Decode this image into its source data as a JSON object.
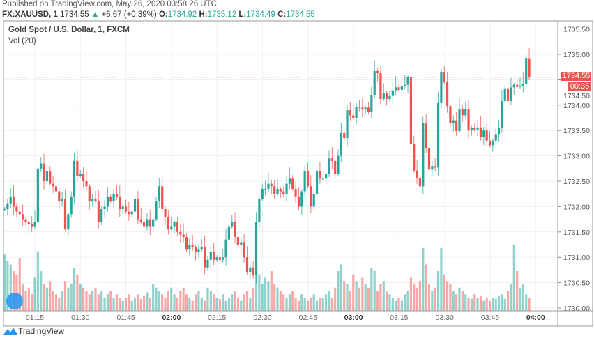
{
  "header": {
    "published": "Published on TradingView.com, May 26, 2020 03:58:26 UTC",
    "symbol": "FX:XAUUSD, 1",
    "last": "1734.55",
    "change": "+6.67 (+0.39%)",
    "o_label": "O:",
    "o": "1734.92",
    "h_label": "H:",
    "h": "1735.12",
    "l_label": "L:",
    "l": "1734.49",
    "c_label": "C:",
    "c": "1734.55"
  },
  "legend": {
    "title": "Gold Spot / U.S. Dollar, 1, FXCM",
    "volume": "Vol (20)"
  },
  "price_tag": {
    "price": "1734.55",
    "countdown": "00:35"
  },
  "footer": {
    "brand": "TradingView"
  },
  "colors": {
    "up": "#26a69a",
    "down": "#ef5350",
    "grid": "#eef1f4"
  },
  "chart_data": {
    "type": "candlestick",
    "interval_minutes": 1,
    "start_time": "01:05",
    "x_tick_labels": [
      "01:15",
      "01:30",
      "01:45",
      "02:00",
      "02:15",
      "02:30",
      "02:45",
      "03:00",
      "03:15",
      "03:30",
      "03:45",
      "04:00"
    ],
    "x_tick_bold": [
      "02:00",
      "03:00",
      "04:00"
    ],
    "y_tick_labels": [
      "1735.50",
      "1735.00",
      "1734.50",
      "1734.00",
      "1733.50",
      "1733.00",
      "1732.50",
      "1732.00",
      "1731.50",
      "1731.00",
      "1730.50",
      "1730.00"
    ],
    "ylim": [
      1730.0,
      1735.6
    ],
    "grid": true,
    "last_open": 1734.92,
    "last_high": 1735.12,
    "last_low": 1734.49,
    "closes": [
      1731.95,
      1732.05,
      1732.2,
      1732.0,
      1731.9,
      1731.85,
      1731.75,
      1731.7,
      1731.65,
      1731.6,
      1731.7,
      1732.75,
      1732.85,
      1732.5,
      1732.7,
      1732.45,
      1732.4,
      1732.3,
      1732.1,
      1732.15,
      1731.55,
      1731.85,
      1732.2,
      1732.9,
      1732.6,
      1732.65,
      1732.5,
      1732.4,
      1732.1,
      1732.15,
      1732.1,
      1731.7,
      1731.95,
      1732.0,
      1732.2,
      1732.1,
      1732.25,
      1732.2,
      1731.95,
      1732.0,
      1731.9,
      1731.85,
      1731.9,
      1732.15,
      1731.75,
      1731.7,
      1731.6,
      1731.75,
      1731.6,
      1731.75,
      1732.1,
      1732.4,
      1731.95,
      1731.8,
      1731.55,
      1731.6,
      1731.7,
      1731.5,
      1731.45,
      1731.4,
      1731.15,
      1731.25,
      1731.2,
      1731.1,
      1731.15,
      1731.2,
      1730.8,
      1730.95,
      1731.1,
      1730.95,
      1731.0,
      1730.95,
      1731.0,
      1731.35,
      1731.6,
      1731.7,
      1731.4,
      1731.25,
      1731.3,
      1731.0,
      1730.7,
      1730.8,
      1730.65,
      1731.7,
      1732.15,
      1732.35,
      1732.35,
      1732.45,
      1732.4,
      1732.25,
      1732.35,
      1732.3,
      1732.25,
      1732.45,
      1732.55,
      1732.35,
      1732.2,
      1732.0,
      1732.3,
      1732.7,
      1732.4,
      1732.0,
      1732.25,
      1732.7,
      1732.55,
      1732.55,
      1732.65,
      1732.95,
      1732.9,
      1732.65,
      1733.0,
      1733.45,
      1733.35,
      1733.9,
      1733.8,
      1733.75,
      1733.97,
      1733.95,
      1733.92,
      1733.95,
      1733.87,
      1734.2,
      1734.67,
      1734.63,
      1734.12,
      1734.24,
      1734.12,
      1734.18,
      1734.29,
      1734.35,
      1734.3,
      1734.38,
      1734.4,
      1734.56,
      1733.23,
      1732.71,
      1732.57,
      1732.4,
      1733.64,
      1733.16,
      1732.73,
      1732.8,
      1732.77,
      1734.04,
      1734.65,
      1734.46,
      1733.98,
      1733.64,
      1733.7,
      1733.49,
      1733.92,
      1733.8,
      1733.92,
      1733.5,
      1733.55,
      1733.52,
      1733.56,
      1733.37,
      1733.5,
      1733.3,
      1733.21,
      1733.3,
      1733.43,
      1733.55,
      1734.08,
      1734.33,
      1734.08,
      1734.35,
      1734.4,
      1734.36,
      1734.38,
      1734.42,
      1734.93,
      1734.55
    ],
    "volume_relative": [
      85,
      75,
      70,
      60,
      55,
      80,
      40,
      30,
      35,
      25,
      50,
      90,
      60,
      40,
      35,
      45,
      30,
      25,
      20,
      30,
      45,
      35,
      40,
      65,
      55,
      40,
      35,
      30,
      25,
      30,
      35,
      25,
      30,
      20,
      25,
      30,
      20,
      25,
      20,
      15,
      20,
      25,
      15,
      20,
      25,
      18,
      22,
      28,
      20,
      40,
      35,
      30,
      25,
      20,
      30,
      35,
      25,
      20,
      30,
      35,
      25,
      20,
      15,
      25,
      30,
      20,
      15,
      35,
      30,
      25,
      20,
      18,
      25,
      15,
      20,
      25,
      30,
      20,
      15,
      25,
      30,
      20,
      35,
      70,
      55,
      40,
      50,
      45,
      60,
      40,
      35,
      30,
      25,
      20,
      25,
      30,
      20,
      15,
      25,
      20,
      15,
      20,
      25,
      15,
      20,
      20,
      25,
      30,
      20,
      35,
      60,
      70,
      45,
      40,
      30,
      55,
      45,
      35,
      50,
      40,
      35,
      65,
      60,
      30,
      40,
      45,
      30,
      25,
      20,
      15,
      20,
      15,
      25,
      30,
      50,
      40,
      35,
      45,
      95,
      70,
      40,
      30,
      35,
      60,
      95,
      55,
      45,
      40,
      30,
      25,
      35,
      30,
      25,
      20,
      18,
      25,
      20,
      22,
      15,
      20,
      15,
      20,
      18,
      22,
      25,
      18,
      30,
      40,
      100,
      60,
      35,
      40,
      25,
      20
    ]
  }
}
